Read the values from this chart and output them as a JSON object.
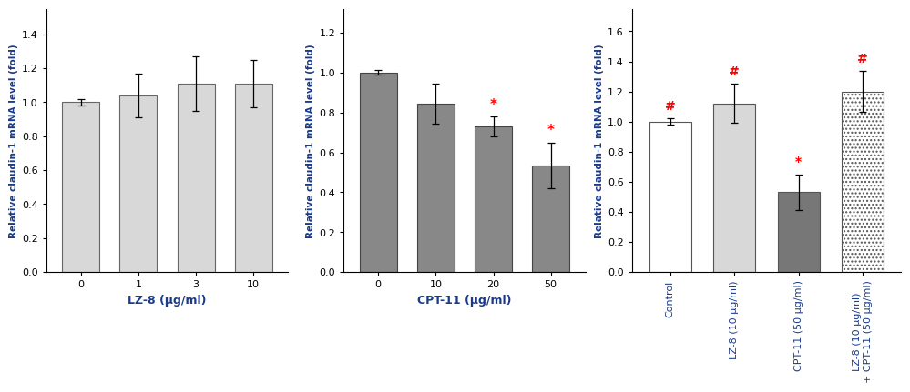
{
  "panel1": {
    "categories": [
      "0",
      "1",
      "3",
      "10"
    ],
    "values": [
      1.0,
      1.04,
      1.11,
      1.11
    ],
    "errors": [
      0.02,
      0.13,
      0.16,
      0.14
    ],
    "bar_color": "#d8d8d8",
    "bar_edgecolor": "#666666",
    "xlabel": "LZ-8 (μg/ml)",
    "ylabel": "Relative claudin-1 mRNA level (fold)",
    "ylim": [
      0.0,
      1.55
    ],
    "yticks": [
      0.0,
      0.2,
      0.4,
      0.6,
      0.8,
      1.0,
      1.2,
      1.4
    ],
    "significance": [
      "",
      "",
      "",
      ""
    ],
    "sig_colors": []
  },
  "panel2": {
    "categories": [
      "0",
      "10",
      "20",
      "50"
    ],
    "values": [
      1.0,
      0.845,
      0.73,
      0.535
    ],
    "errors": [
      0.012,
      0.1,
      0.05,
      0.115
    ],
    "bar_color": "#888888",
    "bar_edgecolor": "#444444",
    "xlabel": "CPT-11 (μg/ml)",
    "ylabel": "Relative claudin-1 mRNA level (fold)",
    "ylim": [
      0.0,
      1.32
    ],
    "yticks": [
      0.0,
      0.2,
      0.4,
      0.6,
      0.8,
      1.0,
      1.2
    ],
    "significance": [
      "",
      "",
      "*",
      "*"
    ],
    "sig_colors": [
      "red",
      "red",
      "red",
      "red"
    ]
  },
  "panel3": {
    "categories": [
      "Control",
      "LZ-8 (10 μg/ml)",
      "CPT-11 (50 μg/ml)",
      "LZ-8 (10 μg/ml)\n+ CPT-11 (50 μg/ml)"
    ],
    "values": [
      1.0,
      1.12,
      0.53,
      1.2
    ],
    "errors": [
      0.02,
      0.13,
      0.12,
      0.135
    ],
    "bar_colors": [
      "#ffffff",
      "#d8d8d8",
      "#777777",
      "#ffffff"
    ],
    "bar_hatches": [
      "",
      "",
      "",
      "...."
    ],
    "bar_edgecolor": "#555555",
    "xlabel": "",
    "ylabel": "Relative claudin-1 mRNA level (fold)",
    "ylim": [
      0.0,
      1.75
    ],
    "yticks": [
      0.0,
      0.2,
      0.4,
      0.6,
      0.8,
      1.0,
      1.2,
      1.4,
      1.6
    ],
    "significance": [
      "#",
      "#",
      "*",
      "#"
    ],
    "sig_colors": [
      "red",
      "red",
      "red",
      "red"
    ]
  }
}
